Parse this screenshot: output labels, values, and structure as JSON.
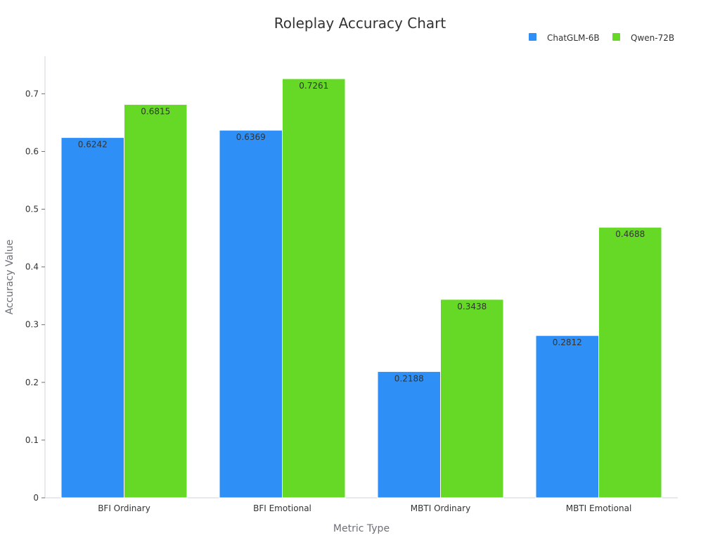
{
  "chart_data": {
    "type": "bar",
    "title": "Roleplay Accuracy Chart",
    "xlabel": "Metric Type",
    "ylabel": "Accuracy Value",
    "categories": [
      "BFI Ordinary",
      "BFI Emotional",
      "MBTI Ordinary",
      "MBTI Emotional"
    ],
    "series": [
      {
        "name": "ChatGLM-6B",
        "color": "#2e90f7",
        "values": [
          0.6242,
          0.6369,
          0.2188,
          0.2812
        ],
        "labels": [
          "0.6242",
          "0.6369",
          "0.2188",
          "0.2812"
        ]
      },
      {
        "name": "Qwen-72B",
        "color": "#66d926",
        "values": [
          0.6815,
          0.7261,
          0.3438,
          0.4688
        ],
        "labels": [
          "0.6815",
          "0.7261",
          "0.3438",
          "0.4688"
        ]
      }
    ],
    "ylim": [
      0,
      0.765
    ],
    "yticks": [
      0,
      0.1,
      0.2,
      0.3,
      0.4,
      0.5,
      0.6,
      0.7
    ],
    "ytick_labels": [
      "0",
      "0.1",
      "0.2",
      "0.3",
      "0.4",
      "0.5",
      "0.6",
      "0.7"
    ],
    "grid": false,
    "legend_position": "top-right"
  }
}
